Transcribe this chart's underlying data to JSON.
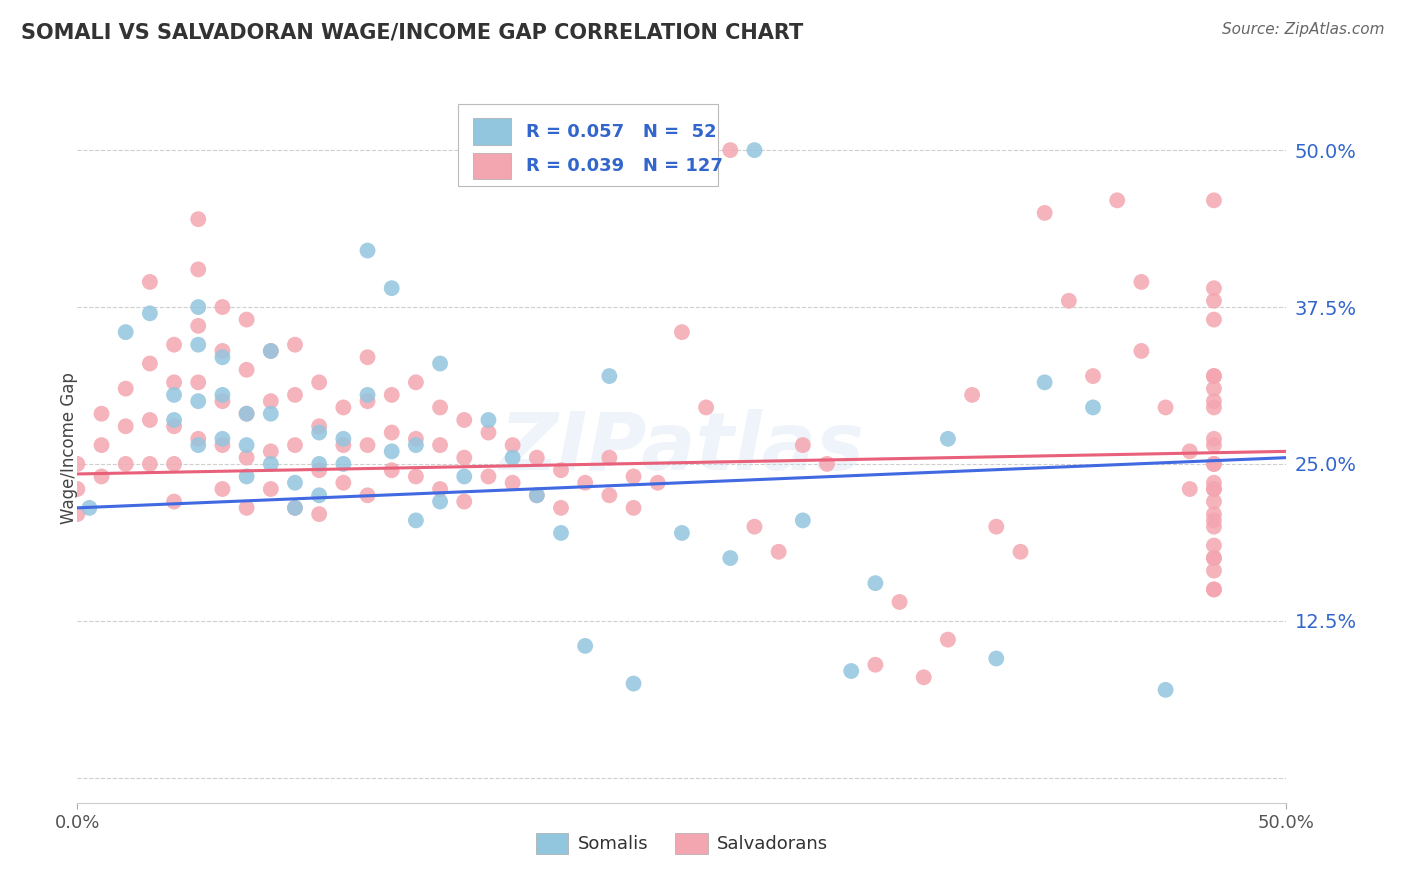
{
  "title": "SOMALI VS SALVADORAN WAGE/INCOME GAP CORRELATION CHART",
  "source": "Source: ZipAtlas.com",
  "ylabel": "Wage/Income Gap",
  "xlim": [
    0.0,
    0.5
  ],
  "ylim": [
    -0.02,
    0.545
  ],
  "yticks": [
    0.0,
    0.125,
    0.25,
    0.375,
    0.5
  ],
  "ytick_labels": [
    "",
    "12.5%",
    "25.0%",
    "37.5%",
    "50.0%"
  ],
  "xticks": [
    0.0,
    0.5
  ],
  "xtick_labels": [
    "0.0%",
    "50.0%"
  ],
  "somali_color": "#92C5DE",
  "salvadoran_color": "#F4A6B0",
  "somali_line_color": "#4169E1",
  "salvadoran_line_color": "#E8607A",
  "background_color": "#FFFFFF",
  "grid_color": "#BBBBBB",
  "R_somali": 0.057,
  "N_somali": 52,
  "R_salvadoran": 0.039,
  "N_salvadoran": 127,
  "watermark": "ZIPatlas",
  "legend_somali": "Somalis",
  "legend_salvadoran": "Salvadorans",
  "somali_line_start_y": 0.215,
  "somali_line_end_y": 0.255,
  "salvadoran_line_start_y": 0.242,
  "salvadoran_line_end_y": 0.26,
  "somali_x": [
    0.005,
    0.02,
    0.03,
    0.04,
    0.04,
    0.05,
    0.05,
    0.05,
    0.05,
    0.06,
    0.06,
    0.06,
    0.07,
    0.07,
    0.07,
    0.08,
    0.08,
    0.08,
    0.09,
    0.09,
    0.1,
    0.1,
    0.1,
    0.11,
    0.11,
    0.12,
    0.12,
    0.13,
    0.13,
    0.14,
    0.14,
    0.15,
    0.15,
    0.16,
    0.17,
    0.18,
    0.19,
    0.2,
    0.21,
    0.22,
    0.23,
    0.25,
    0.27,
    0.28,
    0.3,
    0.32,
    0.33,
    0.36,
    0.38,
    0.4,
    0.42,
    0.45
  ],
  "somali_y": [
    0.215,
    0.355,
    0.37,
    0.305,
    0.285,
    0.375,
    0.345,
    0.3,
    0.265,
    0.335,
    0.305,
    0.27,
    0.29,
    0.265,
    0.24,
    0.34,
    0.29,
    0.25,
    0.235,
    0.215,
    0.275,
    0.25,
    0.225,
    0.27,
    0.25,
    0.42,
    0.305,
    0.39,
    0.26,
    0.265,
    0.205,
    0.33,
    0.22,
    0.24,
    0.285,
    0.255,
    0.225,
    0.195,
    0.105,
    0.32,
    0.075,
    0.195,
    0.175,
    0.5,
    0.205,
    0.085,
    0.155,
    0.27,
    0.095,
    0.315,
    0.295,
    0.07
  ],
  "salvadoran_x": [
    0.0,
    0.0,
    0.0,
    0.01,
    0.01,
    0.01,
    0.02,
    0.02,
    0.02,
    0.03,
    0.03,
    0.03,
    0.03,
    0.04,
    0.04,
    0.04,
    0.04,
    0.04,
    0.05,
    0.05,
    0.05,
    0.05,
    0.05,
    0.06,
    0.06,
    0.06,
    0.06,
    0.06,
    0.07,
    0.07,
    0.07,
    0.07,
    0.07,
    0.08,
    0.08,
    0.08,
    0.08,
    0.09,
    0.09,
    0.09,
    0.09,
    0.1,
    0.1,
    0.1,
    0.1,
    0.11,
    0.11,
    0.11,
    0.12,
    0.12,
    0.12,
    0.12,
    0.13,
    0.13,
    0.13,
    0.14,
    0.14,
    0.14,
    0.15,
    0.15,
    0.15,
    0.16,
    0.16,
    0.16,
    0.17,
    0.17,
    0.18,
    0.18,
    0.19,
    0.19,
    0.2,
    0.2,
    0.21,
    0.22,
    0.22,
    0.23,
    0.23,
    0.24,
    0.25,
    0.26,
    0.27,
    0.28,
    0.29,
    0.3,
    0.31,
    0.33,
    0.34,
    0.35,
    0.36,
    0.37,
    0.38,
    0.39,
    0.4,
    0.41,
    0.42,
    0.43,
    0.44,
    0.44,
    0.45,
    0.46,
    0.46,
    0.47,
    0.47,
    0.47,
    0.47,
    0.47,
    0.47,
    0.47,
    0.47,
    0.47,
    0.47,
    0.47,
    0.47,
    0.47,
    0.47,
    0.47,
    0.47,
    0.47,
    0.47,
    0.47,
    0.47,
    0.47,
    0.47,
    0.47,
    0.47,
    0.47,
    0.47
  ],
  "salvadoran_y": [
    0.25,
    0.23,
    0.21,
    0.29,
    0.265,
    0.24,
    0.31,
    0.28,
    0.25,
    0.395,
    0.33,
    0.285,
    0.25,
    0.345,
    0.315,
    0.28,
    0.25,
    0.22,
    0.445,
    0.405,
    0.36,
    0.315,
    0.27,
    0.375,
    0.34,
    0.3,
    0.265,
    0.23,
    0.365,
    0.325,
    0.29,
    0.255,
    0.215,
    0.34,
    0.3,
    0.26,
    0.23,
    0.345,
    0.305,
    0.265,
    0.215,
    0.315,
    0.28,
    0.245,
    0.21,
    0.295,
    0.265,
    0.235,
    0.335,
    0.3,
    0.265,
    0.225,
    0.305,
    0.275,
    0.245,
    0.315,
    0.27,
    0.24,
    0.295,
    0.265,
    0.23,
    0.285,
    0.255,
    0.22,
    0.275,
    0.24,
    0.265,
    0.235,
    0.255,
    0.225,
    0.245,
    0.215,
    0.235,
    0.255,
    0.225,
    0.24,
    0.215,
    0.235,
    0.355,
    0.295,
    0.5,
    0.2,
    0.18,
    0.265,
    0.25,
    0.09,
    0.14,
    0.08,
    0.11,
    0.305,
    0.2,
    0.18,
    0.45,
    0.38,
    0.32,
    0.46,
    0.395,
    0.34,
    0.295,
    0.26,
    0.23,
    0.2,
    0.175,
    0.15,
    0.365,
    0.3,
    0.25,
    0.22,
    0.38,
    0.32,
    0.265,
    0.23,
    0.46,
    0.31,
    0.25,
    0.205,
    0.175,
    0.15,
    0.32,
    0.27,
    0.235,
    0.21,
    0.185,
    0.165,
    0.39,
    0.295,
    0.23
  ]
}
